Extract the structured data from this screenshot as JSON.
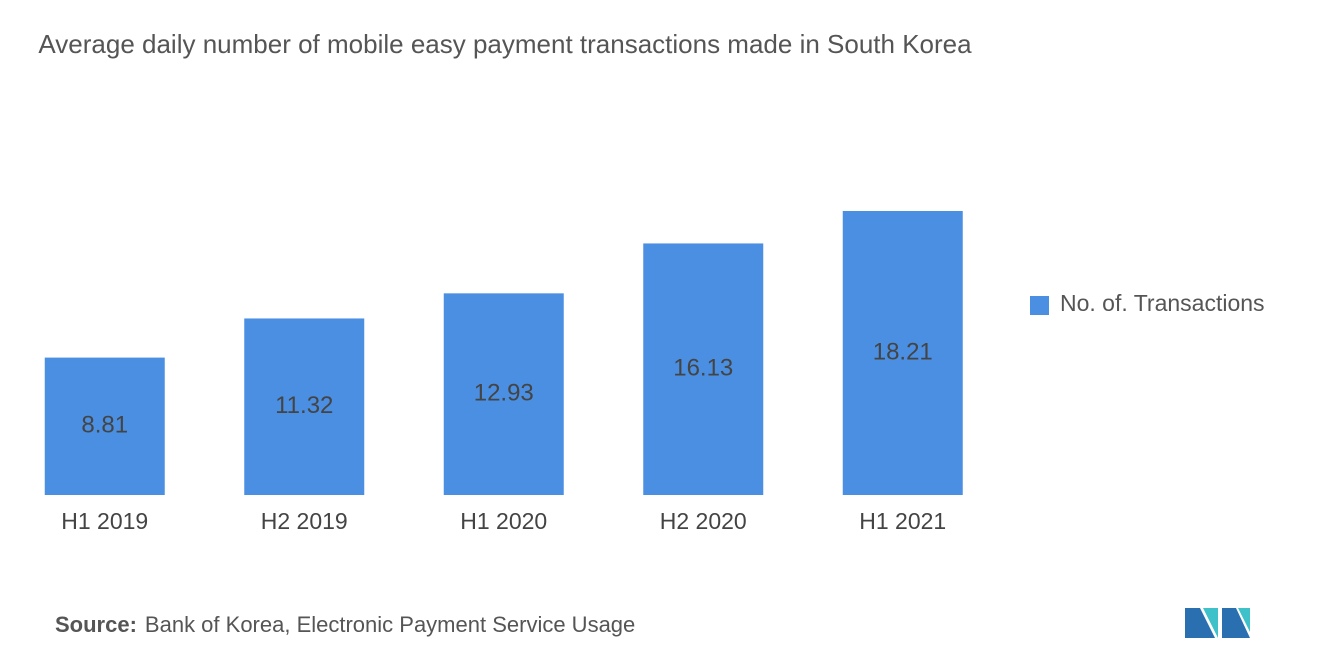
{
  "chart_data": {
    "type": "bar",
    "title": "Average daily number of mobile easy payment transactions made in South Korea",
    "categories": [
      "H1 2019",
      "H2 2019",
      "H1 2020",
      "H2 2020",
      "H1 2021"
    ],
    "series": [
      {
        "name": "No. of. Transactions",
        "color": "#4a8fe2",
        "values": [
          8.81,
          11.32,
          12.93,
          16.13,
          18.21
        ]
      }
    ],
    "legend": "right",
    "source_label": "Source:",
    "source": "Bank of Korea, Electronic Payment Service Usage"
  }
}
